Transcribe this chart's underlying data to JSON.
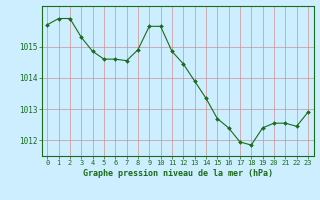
{
  "x": [
    0,
    1,
    2,
    3,
    4,
    5,
    6,
    7,
    8,
    9,
    10,
    11,
    12,
    13,
    14,
    15,
    16,
    17,
    18,
    19,
    20,
    21,
    22,
    23
  ],
  "y": [
    1015.7,
    1015.9,
    1015.9,
    1015.3,
    1014.85,
    1014.6,
    1014.6,
    1014.55,
    1014.9,
    1015.65,
    1015.65,
    1014.85,
    1014.45,
    1013.9,
    1013.35,
    1012.7,
    1012.4,
    1011.95,
    1011.85,
    1012.4,
    1012.55,
    1012.55,
    1012.45,
    1012.9
  ],
  "line_color": "#1a6b1a",
  "marker_color": "#1a6b1a",
  "bg_color": "#cceeff",
  "grid_color": "#cc8888",
  "xlabel": "Graphe pression niveau de la mer (hPa)",
  "ylabel_ticks": [
    1012,
    1013,
    1014,
    1015
  ],
  "xlim": [
    -0.5,
    23.5
  ],
  "ylim": [
    1011.5,
    1016.3
  ],
  "xticks": [
    0,
    1,
    2,
    3,
    4,
    5,
    6,
    7,
    8,
    9,
    10,
    11,
    12,
    13,
    14,
    15,
    16,
    17,
    18,
    19,
    20,
    21,
    22,
    23
  ],
  "axis_color": "#1a6b1a",
  "tick_fontsize": 5.0,
  "xlabel_fontsize": 6.0
}
